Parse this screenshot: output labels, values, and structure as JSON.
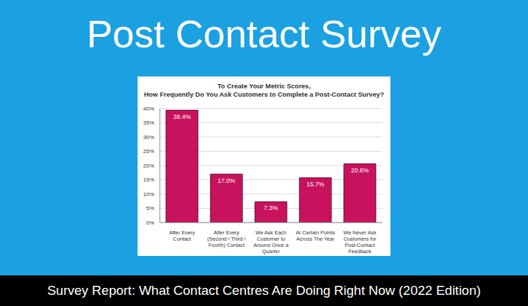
{
  "header": {
    "title": "Post Contact Survey"
  },
  "footer": {
    "text": "Survey Report: What Contact Centres Are Doing Right Now (2022 Edition)"
  },
  "chart_data": {
    "type": "bar",
    "title": "To Create Your Metric Scores,\nHow Frequently Do You Ask Customers to Complete a Post-Contact Survey?",
    "categories": [
      "After Every Contact",
      "After Every (Second / Third / Fourth) Contact",
      "We Ask Each Customer to Around Once a Quarter",
      "At Certain Points Across The Year",
      "We Never Ask Customers for Post-Contact Feedback"
    ],
    "values": [
      39.4,
      17.0,
      7.3,
      15.7,
      20.6
    ],
    "value_labels": [
      "39.4%",
      "17.0%",
      "7.3%",
      "15.7%",
      "20.6%"
    ],
    "color": "#c8125e",
    "ylim": [
      0,
      40
    ],
    "yticks": [
      {
        "value": 0,
        "label": "0%"
      },
      {
        "value": 5,
        "label": "5%"
      },
      {
        "value": 10,
        "label": "10%"
      },
      {
        "value": 15,
        "label": "15%"
      },
      {
        "value": 20,
        "label": "20%"
      },
      {
        "value": 25,
        "label": "25%"
      },
      {
        "value": 30,
        "label": "30%"
      },
      {
        "value": 35,
        "label": "35%"
      },
      {
        "value": 40,
        "label": "40%"
      }
    ],
    "grid": true,
    "data_labels": true
  }
}
